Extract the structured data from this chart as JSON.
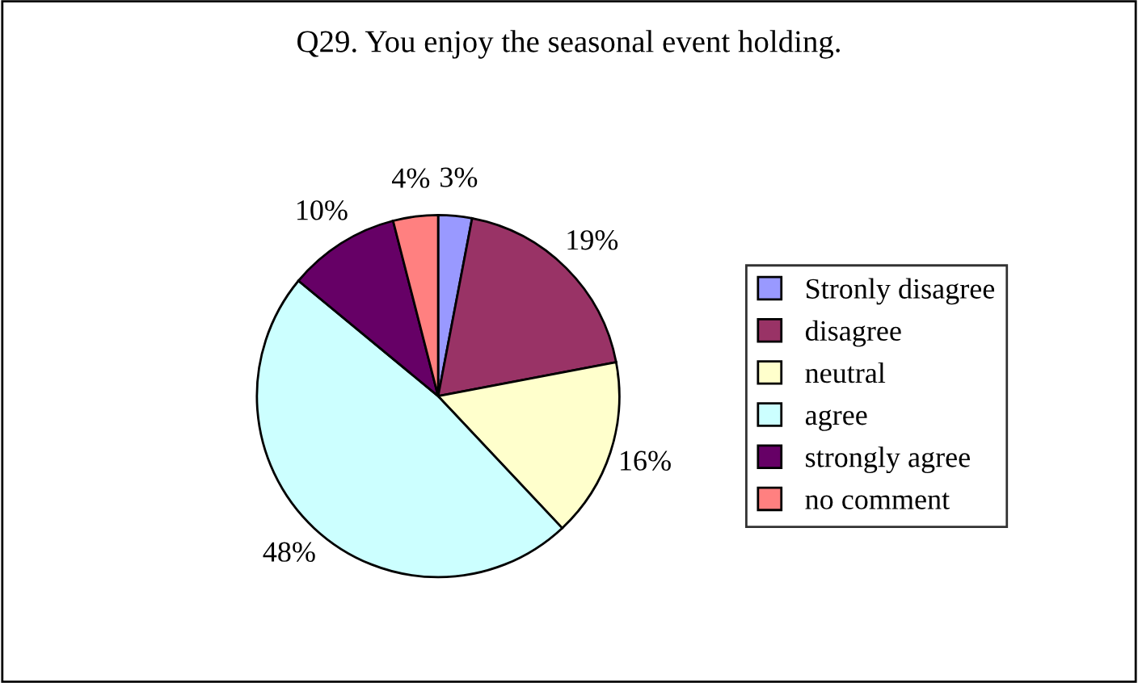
{
  "chart_data": {
    "type": "pie",
    "title": "Q29. You enjoy the seasonal event holding.",
    "categories": [
      "Stronly disagree",
      "disagree",
      "neutral",
      "agree",
      "strongly agree",
      "no comment"
    ],
    "values": [
      3,
      19,
      16,
      48,
      10,
      4
    ],
    "colors": [
      "#9999ff",
      "#993366",
      "#ffffcc",
      "#ccffff",
      "#660066",
      "#ff8080"
    ],
    "value_labels": [
      "3%",
      "19%",
      "16%",
      "48%",
      "10%",
      "4%"
    ],
    "legend": "right"
  }
}
